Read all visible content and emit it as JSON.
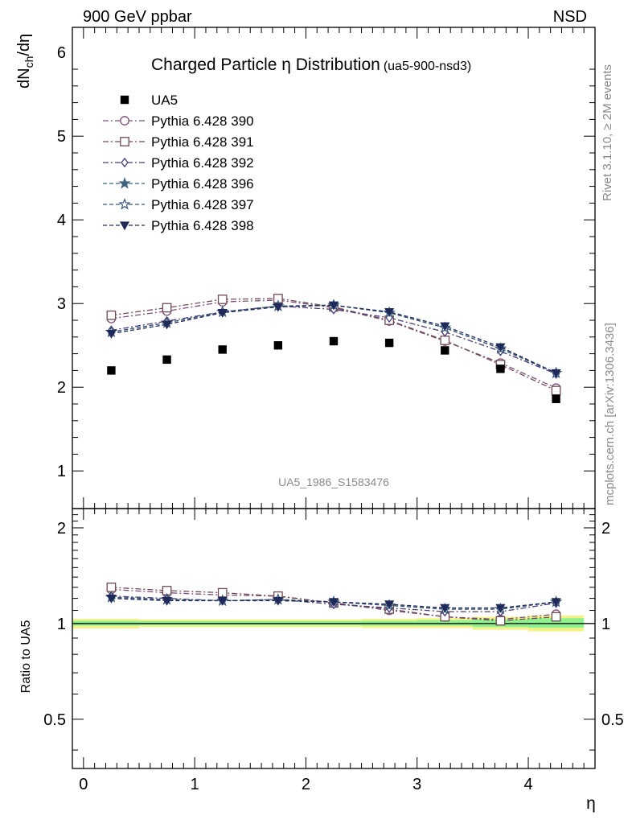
{
  "header": {
    "left_label": "900 GeV ppbar",
    "right_label": "NSD",
    "side_label_top": "Rivet 3.1.10, ≥ 2M events",
    "side_label_bottom": "mcplots.cern.ch [arXiv:1306.3436]"
  },
  "chart_data": [
    {
      "type": "scatter",
      "title": "Charged Particle η Distribution",
      "title_suffix": "(ua5-900-nsd3)",
      "watermark": "UA5_1986_S1583476",
      "ylabel_main": "dN",
      "ylabel_sub": "ch",
      "ylabel_tail": "/dη",
      "xlim": [
        -0.1,
        4.6
      ],
      "ylim": [
        0.55,
        6.3
      ],
      "y_ticks": [
        1,
        2,
        3,
        4,
        5,
        6
      ],
      "y_tick_labels": [
        "1",
        "2",
        "3",
        "4",
        "5",
        "6"
      ],
      "x": [
        0.25,
        0.75,
        1.25,
        1.75,
        2.25,
        2.75,
        3.25,
        3.75,
        4.25
      ],
      "data": {
        "name": "UA5",
        "values": [
          2.2,
          2.33,
          2.45,
          2.5,
          2.55,
          2.53,
          2.44,
          2.22,
          1.86
        ]
      },
      "series": [
        {
          "name": "Pythia 6.428 390",
          "marker": "circle",
          "dash": "dashdot",
          "color": "#7b4f7a",
          "values": [
            2.82,
            2.91,
            3.02,
            3.04,
            2.95,
            2.79,
            2.55,
            2.29,
            1.99
          ]
        },
        {
          "name": "Pythia 6.428 391",
          "marker": "square",
          "dash": "dashdot",
          "color": "#704a55",
          "values": [
            2.86,
            2.95,
            3.05,
            3.06,
            2.96,
            2.8,
            2.56,
            2.27,
            1.96
          ]
        },
        {
          "name": "Pythia 6.428 392",
          "marker": "diamond",
          "dash": "dashdot",
          "color": "#4a3a7a",
          "values": [
            2.68,
            2.79,
            2.9,
            2.97,
            2.93,
            2.83,
            2.66,
            2.43,
            2.16
          ]
        },
        {
          "name": "Pythia 6.428 396",
          "marker": "star",
          "dash": "dashed",
          "color": "#3f6480",
          "values": [
            2.66,
            2.77,
            2.9,
            2.97,
            2.98,
            2.89,
            2.71,
            2.46,
            2.17
          ]
        },
        {
          "name": "Pythia 6.428 397",
          "marker": "star-open",
          "dash": "dashed",
          "color": "#3a5a78",
          "values": [
            2.66,
            2.77,
            2.9,
            2.97,
            2.98,
            2.89,
            2.71,
            2.46,
            2.17
          ]
        },
        {
          "name": "Pythia 6.428 398",
          "marker": "triangle-down",
          "dash": "dashed",
          "color": "#1f2a5a",
          "values": [
            2.64,
            2.75,
            2.89,
            2.96,
            2.98,
            2.9,
            2.73,
            2.48,
            2.17
          ]
        }
      ]
    },
    {
      "type": "line",
      "ylabel": "Ratio to UA5",
      "xlabel": "η",
      "xlim": [
        -0.1,
        4.6
      ],
      "ylim": [
        0.35,
        2.3
      ],
      "y_ticks": [
        0.5,
        1,
        2
      ],
      "y_tick_labels": [
        "0.5",
        "1",
        "2"
      ],
      "x_ticks": [
        0,
        1,
        2,
        3,
        4
      ],
      "x_tick_labels": [
        "0",
        "1",
        "2",
        "3",
        "4"
      ],
      "band_edges": [
        -0.1,
        0.5,
        1.0,
        1.5,
        2.0,
        2.5,
        3.0,
        3.5,
        4.0,
        4.5
      ],
      "band_outer": [
        [
          0.965,
          1.035
        ],
        [
          0.975,
          1.03
        ],
        [
          0.975,
          1.03
        ],
        [
          0.975,
          1.03
        ],
        [
          0.975,
          1.03
        ],
        [
          0.968,
          1.035
        ],
        [
          0.968,
          1.04
        ],
        [
          0.955,
          1.05
        ],
        [
          0.945,
          1.06
        ]
      ],
      "band_inner": [
        [
          0.985,
          1.02
        ],
        [
          0.988,
          1.018
        ],
        [
          0.988,
          1.018
        ],
        [
          0.988,
          1.018
        ],
        [
          0.988,
          1.018
        ],
        [
          0.985,
          1.02
        ],
        [
          0.985,
          1.025
        ],
        [
          0.975,
          1.03
        ],
        [
          0.97,
          1.04
        ]
      ],
      "band_outer_color": "#f5f28a",
      "band_inner_color": "#8ef08e",
      "series_ratios": [
        [
          1.28,
          1.25,
          1.23,
          1.22,
          1.16,
          1.1,
          1.05,
          1.03,
          1.07
        ],
        [
          1.3,
          1.27,
          1.25,
          1.22,
          1.16,
          1.11,
          1.05,
          1.02,
          1.05
        ],
        [
          1.22,
          1.2,
          1.18,
          1.19,
          1.15,
          1.12,
          1.09,
          1.09,
          1.16
        ],
        [
          1.21,
          1.19,
          1.18,
          1.19,
          1.17,
          1.14,
          1.11,
          1.11,
          1.17
        ],
        [
          1.21,
          1.19,
          1.18,
          1.19,
          1.17,
          1.14,
          1.11,
          1.11,
          1.17
        ],
        [
          1.2,
          1.18,
          1.18,
          1.18,
          1.17,
          1.15,
          1.12,
          1.12,
          1.17
        ]
      ]
    }
  ]
}
